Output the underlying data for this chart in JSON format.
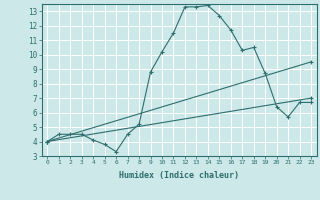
{
  "xlabel": "Humidex (Indice chaleur)",
  "ylabel": "",
  "bg_color": "#cce8e8",
  "grid_color": "#ffffff",
  "line_color": "#2e6e6e",
  "xlim": [
    -0.5,
    23.5
  ],
  "ylim": [
    3,
    13.5
  ],
  "xticks": [
    0,
    1,
    2,
    3,
    4,
    5,
    6,
    7,
    8,
    9,
    10,
    11,
    12,
    13,
    14,
    15,
    16,
    17,
    18,
    19,
    20,
    21,
    22,
    23
  ],
  "yticks": [
    3,
    4,
    5,
    6,
    7,
    8,
    9,
    10,
    11,
    12,
    13
  ],
  "line1_x": [
    0,
    1,
    2,
    3,
    4,
    5,
    6,
    7,
    8,
    9,
    10,
    11,
    12,
    13,
    14,
    15,
    16,
    17,
    18,
    19,
    20,
    21,
    22,
    23
  ],
  "line1_y": [
    4.0,
    4.5,
    4.5,
    4.5,
    4.1,
    3.8,
    3.3,
    4.5,
    5.2,
    8.8,
    10.2,
    11.5,
    13.3,
    13.3,
    13.4,
    12.7,
    11.7,
    10.3,
    10.5,
    8.7,
    6.4,
    5.7,
    6.7,
    6.7
  ],
  "line2_x": [
    0,
    23
  ],
  "line2_y": [
    4.0,
    9.5
  ],
  "line3_x": [
    0,
    23
  ],
  "line3_y": [
    4.0,
    7.0
  ]
}
